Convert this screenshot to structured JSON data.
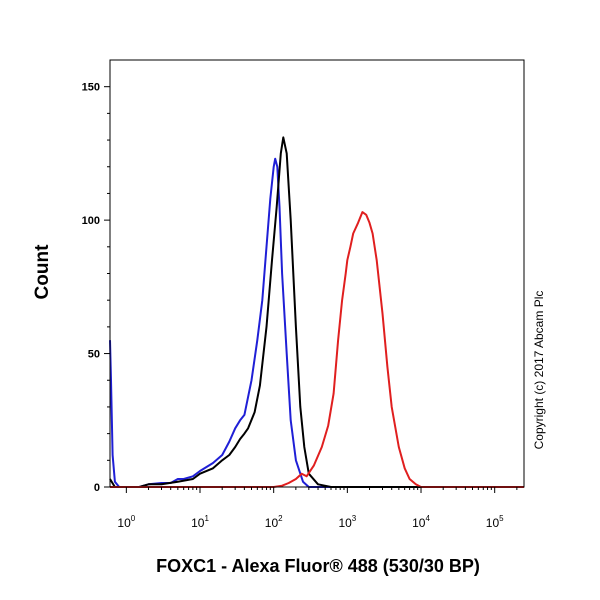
{
  "chart_data": {
    "type": "line",
    "title": "",
    "xlabel": "FOXC1 - Alexa Fluor® 488 (530/30 BP)",
    "ylabel": "Count",
    "xscale": "log",
    "xlim": [
      0.6,
      250000
    ],
    "ylim": [
      0,
      160
    ],
    "yticks": [
      0,
      50,
      100,
      150
    ],
    "xticks": [
      {
        "value": 1,
        "base": "10",
        "exp": "0"
      },
      {
        "value": 10,
        "base": "10",
        "exp": "1"
      },
      {
        "value": 100,
        "base": "10",
        "exp": "2"
      },
      {
        "value": 1000,
        "base": "10",
        "exp": "3"
      },
      {
        "value": 10000,
        "base": "10",
        "exp": "4"
      },
      {
        "value": 100000,
        "base": "10",
        "exp": "5"
      }
    ],
    "grid": false,
    "annotation": "Copyright (c) 2017 Abcam Plc",
    "series": [
      {
        "color": "#1f1fd6",
        "points": [
          [
            0.6,
            55
          ],
          [
            0.62,
            40
          ],
          [
            0.65,
            12
          ],
          [
            0.7,
            2
          ],
          [
            0.8,
            0
          ],
          [
            1.5,
            0
          ],
          [
            2,
            1
          ],
          [
            3,
            1.5
          ],
          [
            4,
            1.5
          ],
          [
            5,
            3
          ],
          [
            6,
            3
          ],
          [
            8,
            4
          ],
          [
            10,
            6
          ],
          [
            15,
            9
          ],
          [
            20,
            12
          ],
          [
            25,
            17
          ],
          [
            30,
            22
          ],
          [
            35,
            25
          ],
          [
            40,
            27
          ],
          [
            50,
            40
          ],
          [
            60,
            55
          ],
          [
            70,
            70
          ],
          [
            80,
            90
          ],
          [
            90,
            108
          ],
          [
            100,
            120
          ],
          [
            105,
            123
          ],
          [
            112,
            120
          ],
          [
            120,
            105
          ],
          [
            130,
            80
          ],
          [
            150,
            50
          ],
          [
            170,
            25
          ],
          [
            200,
            10
          ],
          [
            250,
            2
          ],
          [
            300,
            0
          ],
          [
            250000,
            0
          ]
        ]
      },
      {
        "color": "#000000",
        "points": [
          [
            0.6,
            3
          ],
          [
            0.7,
            0
          ],
          [
            1.5,
            0
          ],
          [
            2,
            1
          ],
          [
            3,
            1
          ],
          [
            5,
            2
          ],
          [
            8,
            3
          ],
          [
            10,
            5
          ],
          [
            15,
            7
          ],
          [
            20,
            10
          ],
          [
            25,
            12
          ],
          [
            30,
            15
          ],
          [
            35,
            18
          ],
          [
            40,
            20
          ],
          [
            45,
            22
          ],
          [
            55,
            28
          ],
          [
            65,
            38
          ],
          [
            80,
            60
          ],
          [
            95,
            85
          ],
          [
            110,
            105
          ],
          [
            125,
            125
          ],
          [
            135,
            131
          ],
          [
            150,
            125
          ],
          [
            170,
            100
          ],
          [
            200,
            60
          ],
          [
            230,
            30
          ],
          [
            260,
            15
          ],
          [
            300,
            5
          ],
          [
            400,
            1
          ],
          [
            600,
            0
          ],
          [
            250000,
            0
          ]
        ]
      },
      {
        "color": "#e01f1f",
        "points": [
          [
            0.6,
            0
          ],
          [
            100,
            0
          ],
          [
            130,
            0.5
          ],
          [
            160,
            1.5
          ],
          [
            200,
            3
          ],
          [
            240,
            5
          ],
          [
            280,
            4
          ],
          [
            350,
            8
          ],
          [
            450,
            15
          ],
          [
            550,
            23
          ],
          [
            650,
            35
          ],
          [
            750,
            55
          ],
          [
            850,
            70
          ],
          [
            950,
            80
          ],
          [
            1000,
            85
          ],
          [
            1100,
            90
          ],
          [
            1200,
            95
          ],
          [
            1400,
            99
          ],
          [
            1600,
            103
          ],
          [
            1800,
            102
          ],
          [
            2000,
            99
          ],
          [
            2200,
            95
          ],
          [
            2500,
            85
          ],
          [
            3000,
            65
          ],
          [
            3500,
            45
          ],
          [
            4000,
            30
          ],
          [
            5000,
            15
          ],
          [
            6000,
            7
          ],
          [
            7000,
            3
          ],
          [
            8500,
            1
          ],
          [
            10000,
            0
          ],
          [
            250000,
            0
          ]
        ]
      }
    ]
  }
}
